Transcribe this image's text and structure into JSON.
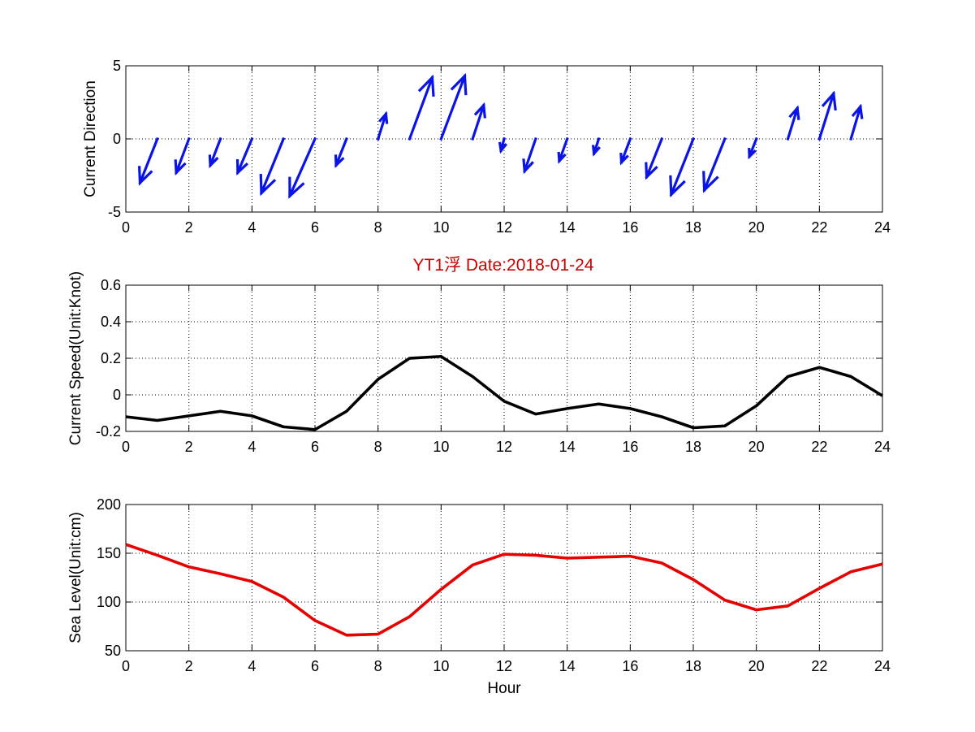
{
  "figure": {
    "title": "YT1浮    Date:2018-01-24",
    "title_color": "#cc0000"
  },
  "colors": {
    "direction": "#0a14e6",
    "speed": "#000000",
    "sealevel": "#e60000"
  },
  "chart_data": [
    {
      "type": "quiver",
      "ylabel": "Current Direction",
      "xlabel": "",
      "xlim": [
        0,
        24
      ],
      "ylim": [
        -5,
        5
      ],
      "xticks": [
        "0",
        "2",
        "4",
        "6",
        "8",
        "10",
        "12",
        "14",
        "16",
        "18",
        "20",
        "22",
        "24"
      ],
      "yticks": [
        "-5",
        "0",
        "5"
      ],
      "grid": true,
      "series": [
        {
          "x": [
            1,
            2,
            3,
            4,
            5,
            6,
            7,
            8,
            9,
            10,
            11,
            12,
            13,
            14,
            15,
            16,
            17,
            18,
            19,
            20,
            21,
            22,
            23
          ],
          "u": [
            -0.55,
            -0.4,
            -0.32,
            -0.45,
            -0.7,
            -0.8,
            -0.33,
            0.25,
            0.72,
            0.75,
            0.35,
            -0.1,
            -0.35,
            -0.25,
            -0.15,
            -0.28,
            -0.48,
            -0.7,
            -0.65,
            -0.22,
            0.3,
            0.45,
            0.3
          ],
          "v": [
            -3.0,
            -2.3,
            -1.8,
            -2.3,
            -3.7,
            -3.9,
            -1.8,
            1.7,
            4.2,
            4.3,
            2.3,
            -0.8,
            -2.2,
            -1.5,
            -1.0,
            -1.6,
            -2.6,
            -3.8,
            -3.5,
            -1.2,
            2.1,
            3.1,
            2.2
          ]
        }
      ]
    },
    {
      "type": "line",
      "ylabel": "Current Speed(Unit:Knot)",
      "xlabel": "",
      "xlim": [
        0,
        24
      ],
      "ylim": [
        -0.2,
        0.6
      ],
      "xticks": [
        "0",
        "2",
        "4",
        "6",
        "8",
        "10",
        "12",
        "14",
        "16",
        "18",
        "20",
        "22",
        "24"
      ],
      "yticks": [
        "-0.2",
        "0",
        "0.2",
        "0.4",
        "0.6"
      ],
      "grid": true,
      "series": [
        {
          "x": [
            0,
            1,
            2,
            3,
            4,
            5,
            6,
            7,
            8,
            9,
            10,
            11,
            12,
            13,
            14,
            15,
            16,
            17,
            18,
            19,
            20,
            21,
            22,
            23,
            24
          ],
          "values": [
            -0.12,
            -0.14,
            -0.115,
            -0.09,
            -0.115,
            -0.175,
            -0.19,
            -0.09,
            0.085,
            0.2,
            0.21,
            0.1,
            -0.035,
            -0.105,
            -0.075,
            -0.05,
            -0.075,
            -0.12,
            -0.18,
            -0.17,
            -0.06,
            0.1,
            0.15,
            0.1,
            -0.005
          ]
        }
      ]
    },
    {
      "type": "line",
      "ylabel": "Sea Level(Unit:cm)",
      "xlabel": "Hour",
      "xlim": [
        0,
        24
      ],
      "ylim": [
        50,
        200
      ],
      "xticks": [
        "0",
        "2",
        "4",
        "6",
        "8",
        "10",
        "12",
        "14",
        "16",
        "18",
        "20",
        "22",
        "24"
      ],
      "yticks": [
        "50",
        "100",
        "150",
        "200"
      ],
      "grid": true,
      "series": [
        {
          "x": [
            0,
            1,
            2,
            3,
            4,
            5,
            6,
            7,
            8,
            9,
            10,
            11,
            12,
            13,
            14,
            15,
            16,
            17,
            18,
            19,
            20,
            21,
            22,
            23,
            24
          ],
          "values": [
            159,
            148,
            136,
            129,
            121,
            105,
            81,
            66,
            67,
            85,
            113,
            138,
            149,
            148,
            145,
            146,
            147,
            140,
            123,
            102,
            92,
            96,
            114,
            131,
            139
          ]
        }
      ]
    }
  ]
}
